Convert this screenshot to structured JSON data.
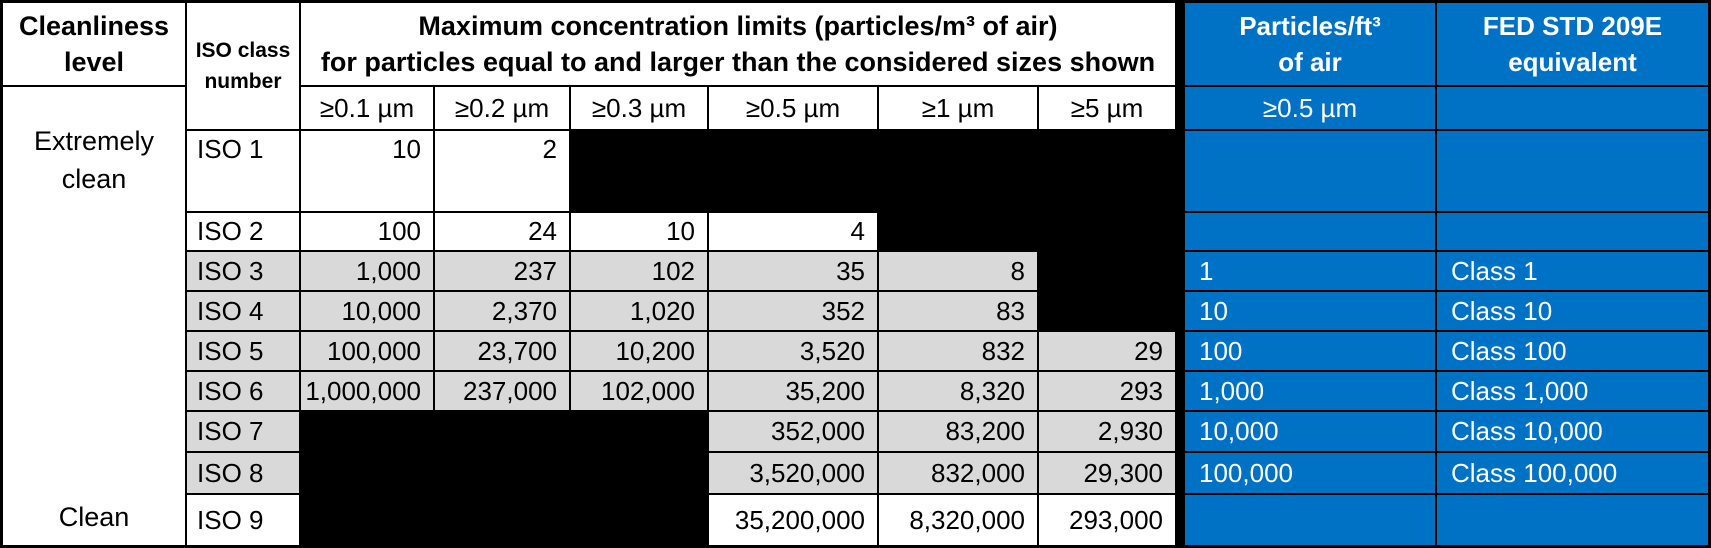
{
  "colors": {
    "accent_blue": "#0072C6",
    "row_gray": "#D9D9D9",
    "blocked_black": "#000000",
    "border": "#000000"
  },
  "header": {
    "cleanliness": "Cleanliness level",
    "iso_class": "ISO class number",
    "max_line1": "Maximum concentration limits (particles/m³ of air)",
    "max_line2": "for particles equal to and larger than the considered sizes shown",
    "sizes": [
      "≥0.1 µm",
      "≥0.2 µm",
      "≥0.3 µm",
      "≥0.5 µm",
      "≥1 µm",
      "≥5 µm"
    ]
  },
  "side": {
    "top_label": "Extremely clean",
    "bottom_label": "Clean"
  },
  "main": {
    "rows": [
      {
        "label": "ISO 1",
        "values": [
          "10",
          "2"
        ]
      },
      {
        "label": "ISO 2",
        "values": [
          "100",
          "24",
          "10",
          "4"
        ]
      },
      {
        "label": "ISO 3",
        "values": [
          "1,000",
          "237",
          "102",
          "35",
          "8"
        ]
      },
      {
        "label": "ISO 4",
        "values": [
          "10,000",
          "2,370",
          "1,020",
          "352",
          "83"
        ]
      },
      {
        "label": "ISO 5",
        "values": [
          "100,000",
          "23,700",
          "10,200",
          "3,520",
          "832",
          "29"
        ]
      },
      {
        "label": "ISO 6",
        "values": [
          "1,000,000",
          "237,000",
          "102,000",
          "35,200",
          "8,320",
          "293"
        ]
      },
      {
        "label": "ISO 7",
        "values": [
          "352,000",
          "83,200",
          "2,930"
        ]
      },
      {
        "label": "ISO 8",
        "values": [
          "3,520,000",
          "832,000",
          "29,300"
        ]
      },
      {
        "label": "ISO 9",
        "values": [
          "35,200,000",
          "8,320,000",
          "293,000"
        ]
      }
    ]
  },
  "fed": {
    "header1_line1": "Particles/ft³",
    "header1_line2": "of air",
    "header2_line1": "FED STD 209E",
    "header2_line2": "equivalent",
    "size": "≥0.5 µm",
    "rows": [
      [
        "",
        ""
      ],
      [
        "",
        ""
      ],
      [
        "1",
        "Class 1"
      ],
      [
        "10",
        "Class 10"
      ],
      [
        "100",
        "Class 100"
      ],
      [
        "1,000",
        "Class 1,000"
      ],
      [
        "10,000",
        "Class 10,000"
      ],
      [
        "100,000",
        "Class 100,000"
      ],
      [
        "",
        ""
      ]
    ]
  }
}
